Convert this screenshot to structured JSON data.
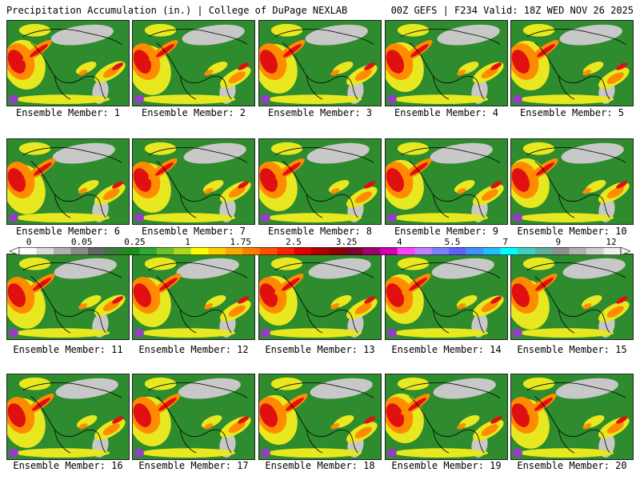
{
  "header": {
    "left": "Precipitation Accumulation (in.) | College of DuPage NEXLAB",
    "right": "00Z GEFS | F234 Valid: 18Z WED NOV 26 2025"
  },
  "panel_label_prefix": "Ensemble Member:",
  "members": [
    "Ensemble Member: 1",
    "Ensemble Member: 2",
    "Ensemble Member: 3",
    "Ensemble Member: 4",
    "Ensemble Member: 5",
    "Ensemble Member: 6",
    "Ensemble Member: 7",
    "Ensemble Member: 8",
    "Ensemble Member: 9",
    "Ensemble Member: 10",
    "Ensemble Member: 11",
    "Ensemble Member: 12",
    "Ensemble Member: 13",
    "Ensemble Member: 14",
    "Ensemble Member: 15",
    "Ensemble Member: 16",
    "Ensemble Member: 17",
    "Ensemble Member: 18",
    "Ensemble Member: 19",
    "Ensemble Member: 20"
  ],
  "colorbar": {
    "tick_labels": [
      "0",
      "0.05",
      "0.25",
      "1",
      "1.75",
      "2.5",
      "3.25",
      "4",
      "5.5",
      "7",
      "9",
      "12"
    ],
    "colors": [
      "#ffffff",
      "#d9d9d9",
      "#b0b0b0",
      "#8a8a8a",
      "#646464",
      "#3c7a3c",
      "#1e8c1e",
      "#2ea82e",
      "#6cc030",
      "#b0d820",
      "#ffff00",
      "#ffd000",
      "#ffa800",
      "#ff8000",
      "#ff5000",
      "#ff2000",
      "#e00000",
      "#b00000",
      "#900000",
      "#800030",
      "#a00070",
      "#d000b0",
      "#ff40ff",
      "#c080ff",
      "#8080ff",
      "#6060ff",
      "#4090ff",
      "#20c0ff",
      "#00ffff",
      "#40d0c0",
      "#60b0a0",
      "#909090",
      "#b0b0b0",
      "#d0d0d0",
      "#f0f0f0"
    ]
  },
  "map_colors": {
    "land": "#2e8b2e",
    "dry": "#c8c8c8",
    "light": "#e8e820",
    "moderate": "#ff8c00",
    "heavy": "#e01010",
    "extreme": "#9040c0",
    "coast": "#000000"
  }
}
